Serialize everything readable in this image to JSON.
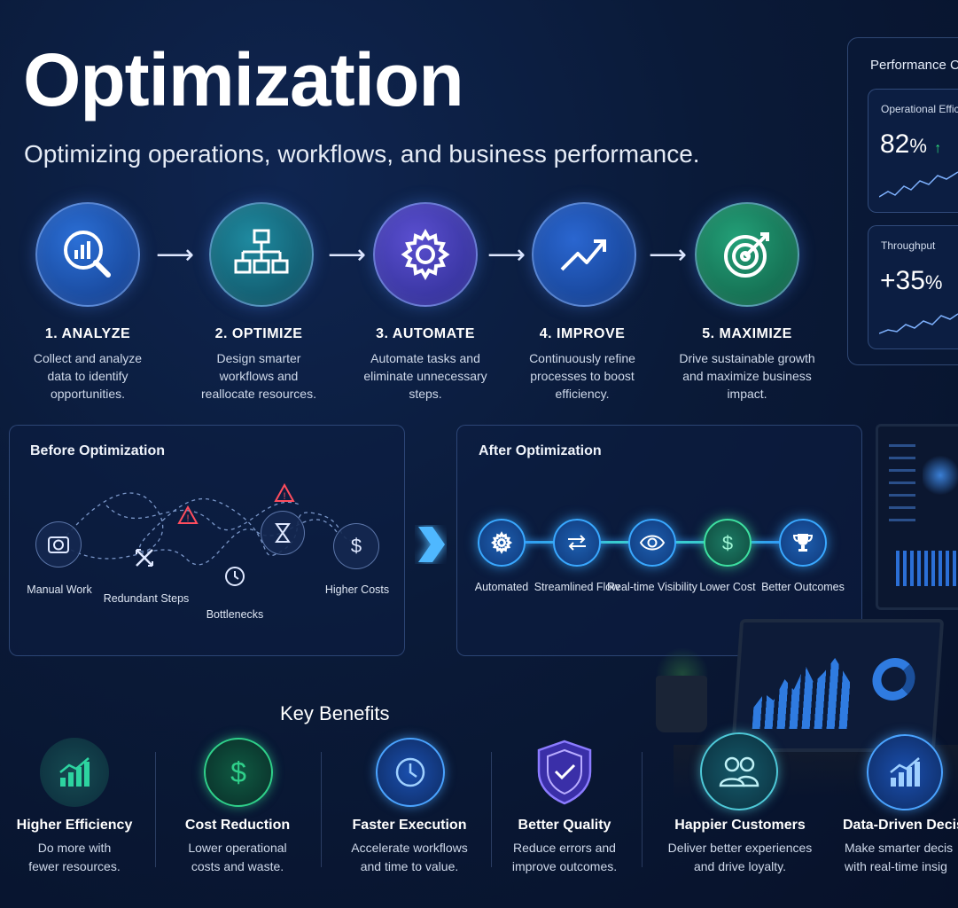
{
  "header": {
    "title": "Optimization",
    "subtitle": "Optimizing operations, workflows, and business performance."
  },
  "steps": [
    {
      "title": "1. ANALYZE",
      "desc_lines": [
        "Collect and analyze",
        "data to identify",
        "opportunities."
      ],
      "icon": "magnifier-chart-icon",
      "color": "#1e56b8"
    },
    {
      "title": "2. OPTIMIZE",
      "desc_lines": [
        "Design smarter",
        "workflows and",
        "reallocate resources."
      ],
      "icon": "org-chart-icon",
      "color": "#156a7c"
    },
    {
      "title": "3. AUTOMATE",
      "desc_lines": [
        "Automate tasks and",
        "eliminate unnecessary",
        "steps."
      ],
      "icon": "gear-icon",
      "color": "#3d3aa8"
    },
    {
      "title": "4. IMPROVE",
      "desc_lines": [
        "Continuously refine",
        "processes to boost",
        "efficiency."
      ],
      "icon": "trend-up-icon",
      "color": "#1a4fae"
    },
    {
      "title": "5. MAXIMIZE",
      "desc_lines": [
        "Drive sustainable growth",
        "and maximize business",
        "impact."
      ],
      "icon": "target-icon",
      "color": "#1b7a5c"
    }
  ],
  "performance": {
    "title": "Performance C",
    "cards": [
      {
        "label": "Operational Effic",
        "value": "82",
        "unit": "%",
        "trend": "↑"
      },
      {
        "label": "Throughput",
        "value": "+35",
        "unit": "%",
        "trend": ""
      }
    ]
  },
  "before": {
    "title": "Before Optimization",
    "nodes": [
      {
        "label": "Manual Work",
        "icon": "camera-icon"
      },
      {
        "label": "Redundant Steps",
        "icon": "cross-arrows-icon"
      },
      {
        "label": "Bottlenecks",
        "icon": "clock-icon"
      },
      {
        "label": "",
        "icon": "hourglass-icon"
      },
      {
        "label": "Higher Costs",
        "icon": "dollar-icon"
      }
    ]
  },
  "after": {
    "title": "After Optimization",
    "nodes": [
      {
        "label": "Automated",
        "icon": "gear-icon"
      },
      {
        "label": "Streamlined Flow",
        "icon": "arrows-icon"
      },
      {
        "label": "Real-time Visibility",
        "icon": "eye-icon"
      },
      {
        "label": "Lower Cost",
        "icon": "dollar-icon"
      },
      {
        "label": "Better Outcomes",
        "icon": "trophy-icon"
      }
    ]
  },
  "benefits": {
    "title": "Key Benefits",
    "items": [
      {
        "title": "Higher Efficiency",
        "desc_lines": [
          "Do more with",
          "fewer resources."
        ],
        "icon": "bar-growth-icon",
        "color": "#2dd4a0"
      },
      {
        "title": "Cost Reduction",
        "desc_lines": [
          "Lower operational",
          "costs and waste."
        ],
        "icon": "dollar-icon",
        "color": "#2fd08a"
      },
      {
        "title": "Faster Execution",
        "desc_lines": [
          "Accelerate workflows",
          "and time to value."
        ],
        "icon": "clock-icon",
        "color": "#4aa3ff"
      },
      {
        "title": "Better Quality",
        "desc_lines": [
          "Reduce errors and",
          "improve outcomes."
        ],
        "icon": "shield-check-icon",
        "color": "#7b6bff"
      },
      {
        "title": "Happier Customers",
        "desc_lines": [
          "Deliver better experiences",
          "and drive loyalty."
        ],
        "icon": "users-icon",
        "color": "#4ec9d8"
      },
      {
        "title": "Data-Driven Decis",
        "desc_lines": [
          "Make smarter decis",
          "with real-time insig"
        ],
        "icon": "bar-growth-icon",
        "color": "#4aa3ff"
      }
    ]
  }
}
